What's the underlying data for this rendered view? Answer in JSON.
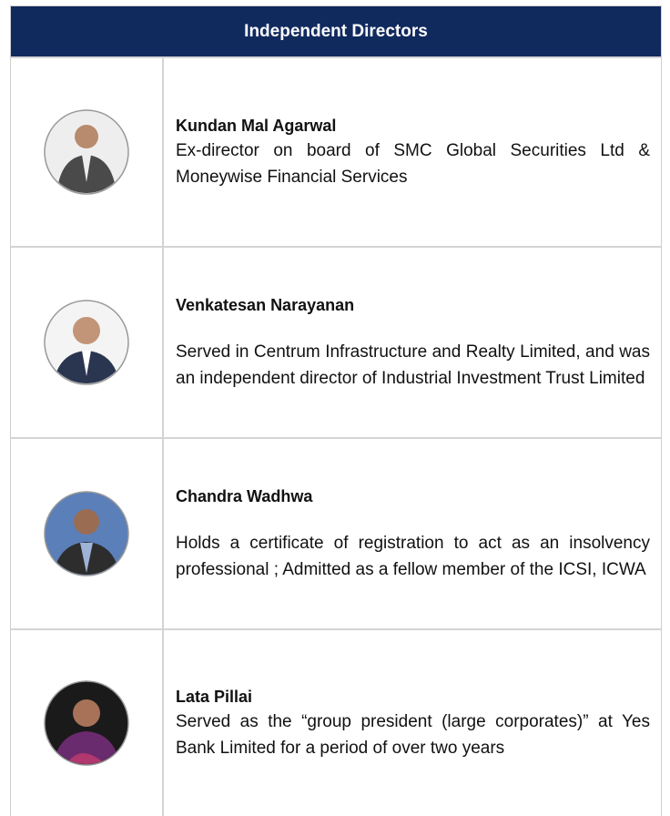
{
  "header": {
    "title": "Independent Directors"
  },
  "directors": [
    {
      "name": "Kundan Mal Agarwal",
      "description": "Ex-director on board of SMC Global Securities Ltd & Moneywise Financial Services"
    },
    {
      "name": "Venkatesan Narayanan",
      "description": "Served in Centrum Infrastructure and Realty Limited, and was an independent director of Industrial Investment Trust Limited"
    },
    {
      "name": "Chandra Wadhwa",
      "description": "Holds a certificate of registration to act as an insolvency professional ; Admitted as a fellow member of the ICSI, ICWA"
    },
    {
      "name": "Lata Pillai",
      "description": "Served as the “group president (large corporates)” at Yes Bank Limited for a period of over two years"
    }
  ]
}
